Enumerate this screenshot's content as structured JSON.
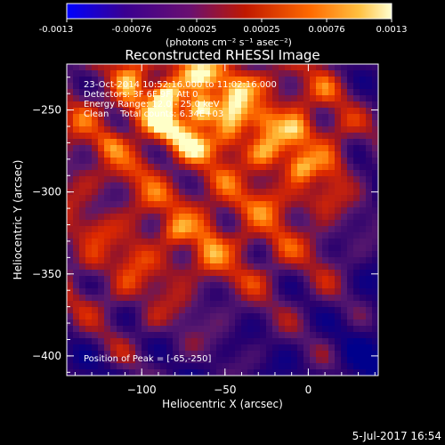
{
  "chart_data": {
    "type": "heatmap",
    "title": "Reconstructed RHESSI Image",
    "xlabel": "Heliocentric X (arcsec)",
    "ylabel": "Heliocentric Y (arcsec)",
    "xlim": [
      -145,
      42
    ],
    "ylim": [
      -412,
      -222
    ],
    "x_ticks": [
      -100,
      -50,
      0
    ],
    "y_ticks": [
      -250,
      -300,
      -350,
      -400
    ],
    "colorbar": {
      "ticks": [
        "-0.0013",
        "-0.00076",
        "-0.00025",
        "0.00025",
        "0.00076",
        "0.0013"
      ],
      "units": "(photons cm⁻² s⁻¹ asec⁻²)",
      "range": [
        -0.0013,
        0.0013
      ],
      "colors": [
        "#0000ff",
        "#400080",
        "#800060",
        "#d02000",
        "#ff8000",
        "#ffffa0"
      ]
    },
    "annotations": [
      "23-Oct-2014 10:52:16.000 to 11:02:16.000",
      "Detectors: 3F 6F 9F, Att 0",
      "Energy Range: 12.0 - 25.0 keV",
      "Clean    Total counts: 6.34E+03"
    ],
    "peak_label": "Position of Peak = [-65,-250]",
    "peak": {
      "x": -65,
      "y": -250
    },
    "blobs": [
      {
        "x": -65,
        "y": -250,
        "v": 1.0
      },
      {
        "x": -85,
        "y": -240,
        "v": 0.7
      },
      {
        "x": -28,
        "y": -255,
        "v": 0.6
      },
      {
        "x": -5,
        "y": -285,
        "v": 0.65
      },
      {
        "x": -120,
        "y": -270,
        "v": 0.4
      },
      {
        "x": -80,
        "y": -325,
        "v": 0.55
      },
      {
        "x": -40,
        "y": -330,
        "v": 0.45
      },
      {
        "x": -130,
        "y": -345,
        "v": 0.35
      },
      {
        "x": -95,
        "y": -380,
        "v": 0.3
      },
      {
        "x": 20,
        "y": -260,
        "v": 0.3
      }
    ]
  },
  "footer": {
    "timestamp": "5-Jul-2017 16:54"
  }
}
